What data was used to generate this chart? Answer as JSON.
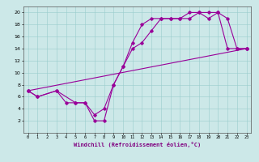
{
  "xlabel": "Windchill (Refroidissement éolien,°C)",
  "bg_color": "#cce8e8",
  "grid_color": "#99cccc",
  "line_color": "#990099",
  "xlim": [
    -0.5,
    23.5
  ],
  "ylim": [
    0,
    21
  ],
  "xticks": [
    0,
    1,
    2,
    3,
    4,
    5,
    6,
    7,
    8,
    9,
    10,
    11,
    12,
    13,
    14,
    15,
    16,
    17,
    18,
    19,
    20,
    21,
    22,
    23
  ],
  "yticks": [
    2,
    4,
    6,
    8,
    10,
    12,
    14,
    16,
    18,
    20
  ],
  "series": [
    {
      "x": [
        0,
        1,
        3,
        4,
        5,
        6,
        7,
        8,
        9,
        10,
        11,
        12,
        13,
        14,
        15,
        16,
        17,
        18,
        19,
        20,
        21,
        22,
        23
      ],
      "y": [
        7,
        6,
        7,
        5,
        5,
        5,
        2,
        2,
        8,
        11,
        15,
        18,
        19,
        19,
        19,
        19,
        20,
        20,
        20,
        20,
        14,
        14,
        14
      ]
    },
    {
      "x": [
        0,
        1,
        3,
        5,
        6,
        7,
        8,
        9,
        10,
        11,
        12,
        13,
        14,
        15,
        16,
        17,
        18,
        19,
        20,
        21,
        22,
        23
      ],
      "y": [
        7,
        6,
        7,
        5,
        5,
        3,
        4,
        8,
        11,
        14,
        15,
        17,
        19,
        19,
        19,
        19,
        20,
        19,
        20,
        19,
        14,
        14
      ]
    },
    {
      "x": [
        0,
        23
      ],
      "y": [
        7,
        14
      ]
    }
  ]
}
